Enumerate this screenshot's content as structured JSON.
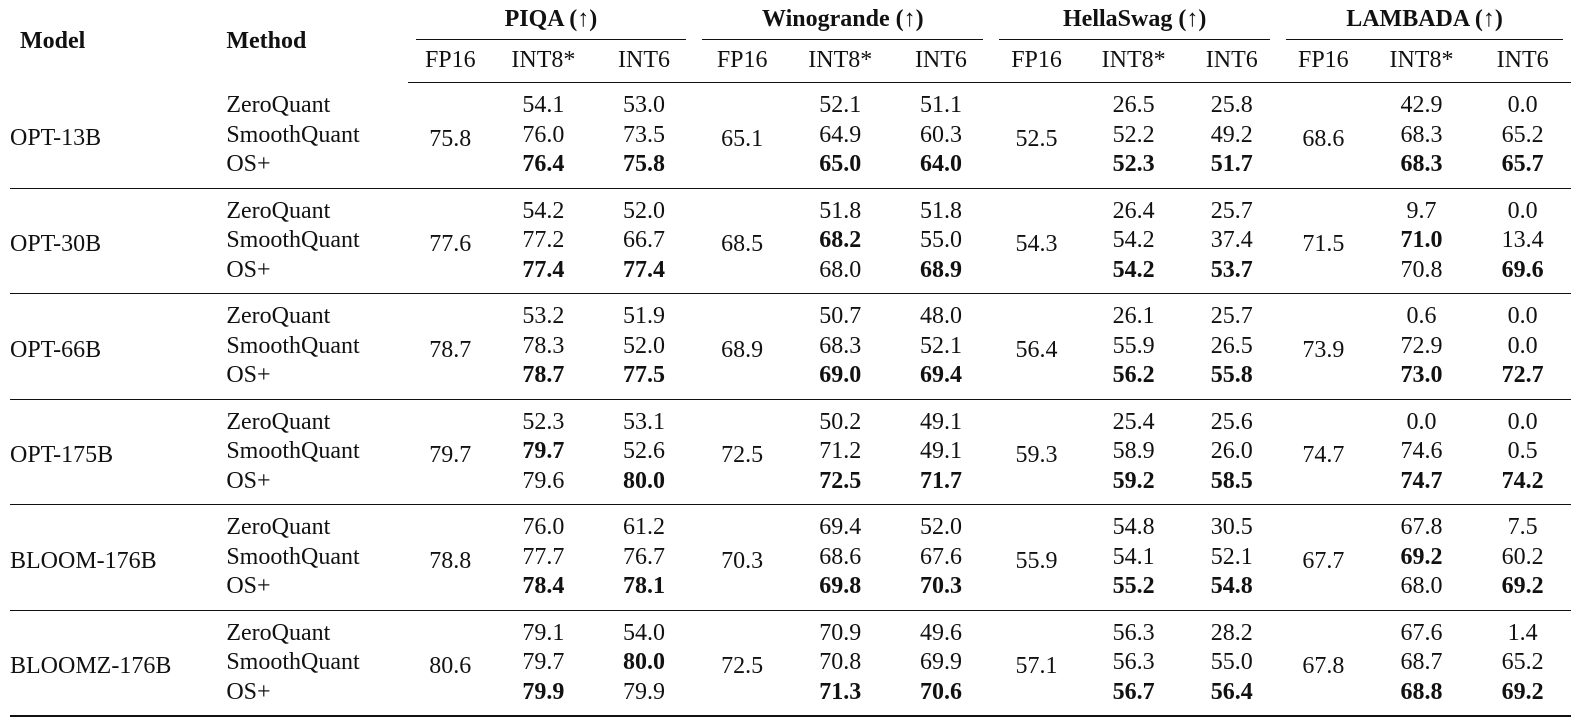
{
  "header": {
    "model": "Model",
    "method": "Method",
    "datasets": [
      "PIQA (↑)",
      "Winogrande (↑)",
      "HellaSwag (↑)",
      "LAMBADA (↑)"
    ],
    "precisions": [
      "FP16",
      "INT8*",
      "INT6"
    ]
  },
  "rows": [
    {
      "model": "OPT-13B",
      "fp16": [
        "75.8",
        "65.1",
        "52.5",
        "68.6"
      ],
      "methods": [
        {
          "name": "ZeroQuant",
          "values": [
            "54.1",
            "53.0",
            "52.1",
            "51.1",
            "26.5",
            "25.8",
            "42.9",
            "0.0"
          ],
          "bold": []
        },
        {
          "name": "SmoothQuant",
          "values": [
            "76.0",
            "73.5",
            "64.9",
            "60.3",
            "52.2",
            "49.2",
            "68.3",
            "65.2"
          ],
          "bold": []
        },
        {
          "name": "OS+",
          "values": [
            "76.4",
            "75.8",
            "65.0",
            "64.0",
            "52.3",
            "51.7",
            "68.3",
            "65.7"
          ],
          "bold": [
            0,
            1,
            2,
            3,
            4,
            5,
            6,
            7
          ]
        }
      ]
    },
    {
      "model": "OPT-30B",
      "fp16": [
        "77.6",
        "68.5",
        "54.3",
        "71.5"
      ],
      "methods": [
        {
          "name": "ZeroQuant",
          "values": [
            "54.2",
            "52.0",
            "51.8",
            "51.8",
            "26.4",
            "25.7",
            "9.7",
            "0.0"
          ],
          "bold": []
        },
        {
          "name": "SmoothQuant",
          "values": [
            "77.2",
            "66.7",
            "68.2",
            "55.0",
            "54.2",
            "37.4",
            "71.0",
            "13.4"
          ],
          "bold": [
            2,
            6
          ]
        },
        {
          "name": "OS+",
          "values": [
            "77.4",
            "77.4",
            "68.0",
            "68.9",
            "54.2",
            "53.7",
            "70.8",
            "69.6"
          ],
          "bold": [
            0,
            1,
            3,
            4,
            5,
            7
          ]
        }
      ]
    },
    {
      "model": "OPT-66B",
      "fp16": [
        "78.7",
        "68.9",
        "56.4",
        "73.9"
      ],
      "methods": [
        {
          "name": "ZeroQuant",
          "values": [
            "53.2",
            "51.9",
            "50.7",
            "48.0",
            "26.1",
            "25.7",
            "0.6",
            "0.0"
          ],
          "bold": []
        },
        {
          "name": "SmoothQuant",
          "values": [
            "78.3",
            "52.0",
            "68.3",
            "52.1",
            "55.9",
            "26.5",
            "72.9",
            "0.0"
          ],
          "bold": []
        },
        {
          "name": "OS+",
          "values": [
            "78.7",
            "77.5",
            "69.0",
            "69.4",
            "56.2",
            "55.8",
            "73.0",
            "72.7"
          ],
          "bold": [
            0,
            1,
            2,
            3,
            4,
            5,
            6,
            7
          ]
        }
      ]
    },
    {
      "model": "OPT-175B",
      "fp16": [
        "79.7",
        "72.5",
        "59.3",
        "74.7"
      ],
      "methods": [
        {
          "name": "ZeroQuant",
          "values": [
            "52.3",
            "53.1",
            "50.2",
            "49.1",
            "25.4",
            "25.6",
            "0.0",
            "0.0"
          ],
          "bold": []
        },
        {
          "name": "SmoothQuant",
          "values": [
            "79.7",
            "52.6",
            "71.2",
            "49.1",
            "58.9",
            "26.0",
            "74.6",
            "0.5"
          ],
          "bold": [
            0
          ]
        },
        {
          "name": "OS+",
          "values": [
            "79.6",
            "80.0",
            "72.5",
            "71.7",
            "59.2",
            "58.5",
            "74.7",
            "74.2"
          ],
          "bold": [
            1,
            2,
            3,
            4,
            5,
            6,
            7
          ]
        }
      ]
    },
    {
      "model": "BLOOM-176B",
      "fp16": [
        "78.8",
        "70.3",
        "55.9",
        "67.7"
      ],
      "methods": [
        {
          "name": "ZeroQuant",
          "values": [
            "76.0",
            "61.2",
            "69.4",
            "52.0",
            "54.8",
            "30.5",
            "67.8",
            "7.5"
          ],
          "bold": []
        },
        {
          "name": "SmoothQuant",
          "values": [
            "77.7",
            "76.7",
            "68.6",
            "67.6",
            "54.1",
            "52.1",
            "69.2",
            "60.2"
          ],
          "bold": [
            6
          ]
        },
        {
          "name": "OS+",
          "values": [
            "78.4",
            "78.1",
            "69.8",
            "70.3",
            "55.2",
            "54.8",
            "68.0",
            "69.2"
          ],
          "bold": [
            0,
            1,
            2,
            3,
            4,
            5,
            7
          ]
        }
      ]
    },
    {
      "model": "BLOOMZ-176B",
      "fp16": [
        "80.6",
        "72.5",
        "57.1",
        "67.8"
      ],
      "methods": [
        {
          "name": "ZeroQuant",
          "values": [
            "79.1",
            "54.0",
            "70.9",
            "49.6",
            "56.3",
            "28.2",
            "67.6",
            "1.4"
          ],
          "bold": []
        },
        {
          "name": "SmoothQuant",
          "values": [
            "79.7",
            "80.0",
            "70.8",
            "69.9",
            "56.3",
            "55.0",
            "68.7",
            "65.2"
          ],
          "bold": [
            1
          ]
        },
        {
          "name": "OS+",
          "values": [
            "79.9",
            "79.9",
            "71.3",
            "70.6",
            "56.7",
            "56.4",
            "68.8",
            "69.2"
          ],
          "bold": [
            0,
            2,
            3,
            4,
            5,
            6,
            7
          ]
        }
      ]
    }
  ]
}
